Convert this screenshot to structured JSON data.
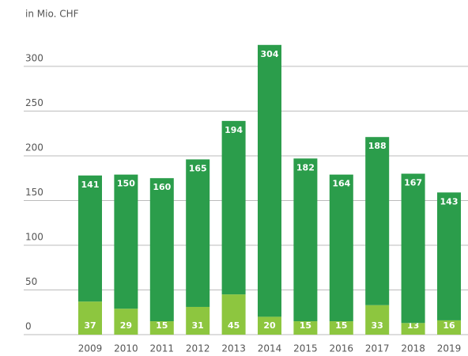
{
  "chart_data": {
    "type": "stacked_bar",
    "y_label": "in Mio. CHF",
    "categories": [
      "2009",
      "2010",
      "2011",
      "2012",
      "2013",
      "2014",
      "2015",
      "2016",
      "2017",
      "2018",
      "2019"
    ],
    "series": [
      {
        "color": "#8dc63f",
        "values": [
          37,
          29,
          15,
          31,
          45,
          20,
          15,
          15,
          33,
          13,
          16
        ]
      },
      {
        "color": "#2b9d4b",
        "values": [
          141,
          150,
          160,
          165,
          194,
          304,
          182,
          164,
          188,
          167,
          143
        ]
      }
    ],
    "ylim": [
      0,
      330
    ],
    "yticks": [
      0,
      50,
      100,
      150,
      200,
      250,
      300
    ],
    "grid": true
  }
}
